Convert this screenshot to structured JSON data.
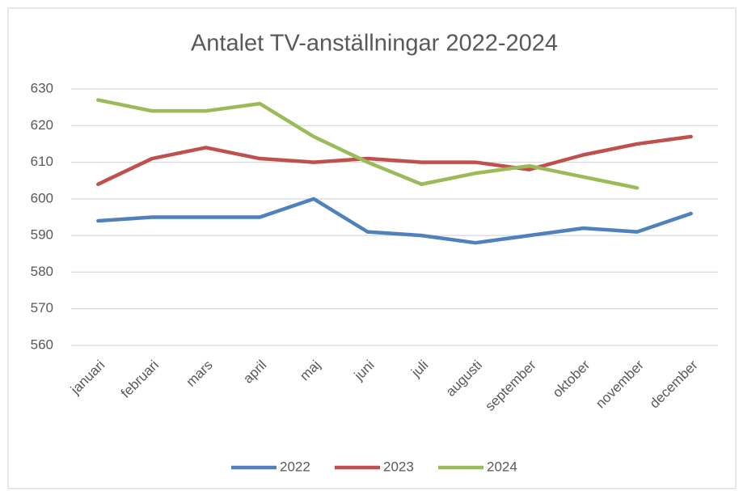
{
  "chart_data": {
    "type": "line",
    "title": "Antalet TV-anställningar 2022-2024",
    "categories": [
      "januari",
      "februari",
      "mars",
      "april",
      "maj",
      "juni",
      "juli",
      "augusti",
      "september",
      "oktober",
      "november",
      "december"
    ],
    "series": [
      {
        "name": "2022",
        "color": "#4f81bd",
        "values": [
          594,
          595,
          595,
          595,
          600,
          591,
          590,
          588,
          590,
          592,
          591,
          596
        ]
      },
      {
        "name": "2023",
        "color": "#c0504d",
        "values": [
          604,
          611,
          614,
          611,
          610,
          611,
          610,
          610,
          608,
          612,
          615,
          617
        ]
      },
      {
        "name": "2024",
        "color": "#9bbb59",
        "values": [
          627,
          624,
          624,
          626,
          617,
          610,
          604,
          607,
          609,
          606,
          603,
          null
        ]
      }
    ],
    "ylim": [
      560,
      630
    ],
    "yticks": [
      560,
      570,
      580,
      590,
      600,
      610,
      620,
      630
    ],
    "grid": true,
    "legend": "bottom"
  }
}
